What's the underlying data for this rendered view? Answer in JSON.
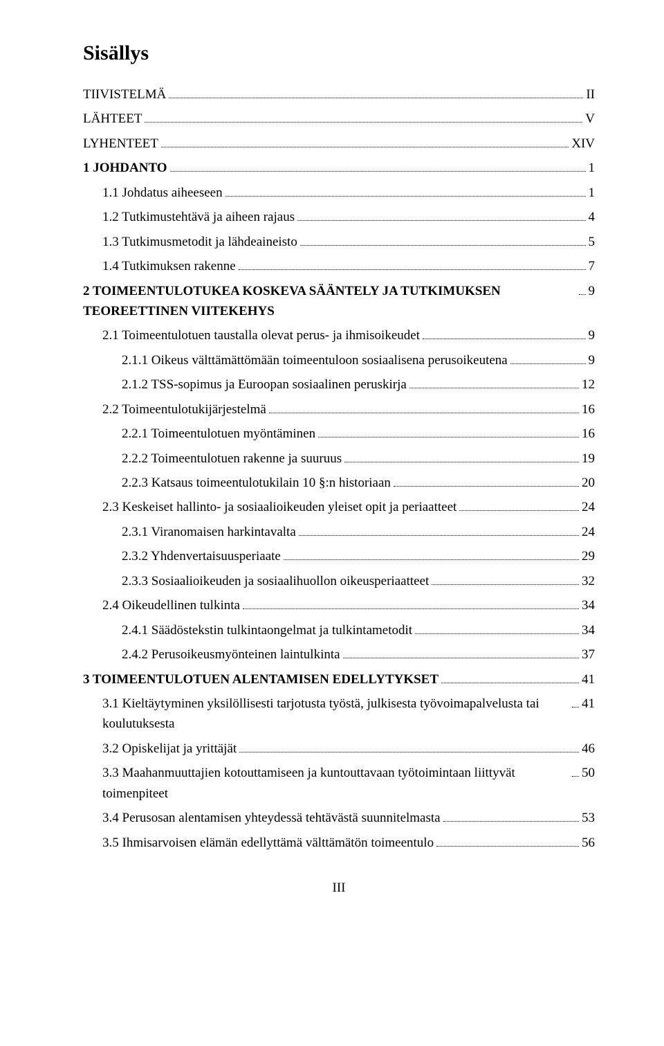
{
  "title": "Sisällys",
  "page_number": "III",
  "colors": {
    "text": "#000000",
    "background": "#ffffff"
  },
  "typography": {
    "font_family": "Times New Roman",
    "title_size_pt": 22,
    "body_size_pt": 14
  },
  "toc": [
    {
      "label": "TIIVISTELMÄ",
      "page": "II",
      "indent": 0,
      "bold": false
    },
    {
      "label": "LÄHTEET",
      "page": "V",
      "indent": 0,
      "bold": false
    },
    {
      "label": "LYHENTEET",
      "page": "XIV",
      "indent": 0,
      "bold": false
    },
    {
      "label": "1 JOHDANTO",
      "page": "1",
      "indent": 0,
      "bold": true
    },
    {
      "label": "1.1 Johdatus aiheeseen",
      "page": "1",
      "indent": 1,
      "bold": false
    },
    {
      "label": "1.2 Tutkimustehtävä ja aiheen rajaus",
      "page": "4",
      "indent": 1,
      "bold": false
    },
    {
      "label": "1.3 Tutkimusmetodit ja lähdeaineisto",
      "page": "5",
      "indent": 1,
      "bold": false
    },
    {
      "label": "1.4 Tutkimuksen rakenne",
      "page": "7",
      "indent": 1,
      "bold": false
    },
    {
      "label": "2 TOIMEENTULOTUKEA KOSKEVA SÄÄNTELY JA TUTKIMUKSEN TEOREETTINEN VIITEKEHYS",
      "page": "9",
      "indent": 0,
      "bold": true
    },
    {
      "label": "2.1 Toimeentulotuen taustalla olevat perus- ja ihmisoikeudet",
      "page": "9",
      "indent": 1,
      "bold": false
    },
    {
      "label": "2.1.1 Oikeus välttämättömään toimeentuloon sosiaalisena perusoikeutena",
      "page": "9",
      "indent": 2,
      "bold": false
    },
    {
      "label": "2.1.2 TSS-sopimus ja Euroopan sosiaalinen peruskirja",
      "page": "12",
      "indent": 2,
      "bold": false
    },
    {
      "label": "2.2 Toimeentulotukijärjestelmä",
      "page": "16",
      "indent": 1,
      "bold": false
    },
    {
      "label": "2.2.1 Toimeentulotuen myöntäminen",
      "page": "16",
      "indent": 2,
      "bold": false
    },
    {
      "label": "2.2.2 Toimeentulotuen rakenne ja suuruus",
      "page": "19",
      "indent": 2,
      "bold": false
    },
    {
      "label": "2.2.3 Katsaus toimeentulotukilain 10 §:n historiaan",
      "page": "20",
      "indent": 2,
      "bold": false
    },
    {
      "label": "2.3 Keskeiset hallinto- ja sosiaalioikeuden yleiset opit ja periaatteet",
      "page": "24",
      "indent": 1,
      "bold": false
    },
    {
      "label": "2.3.1 Viranomaisen harkintavalta",
      "page": "24",
      "indent": 2,
      "bold": false
    },
    {
      "label": "2.3.2 Yhdenvertaisuusperiaate",
      "page": "29",
      "indent": 2,
      "bold": false
    },
    {
      "label": "2.3.3 Sosiaalioikeuden ja sosiaalihuollon oikeusperiaatteet",
      "page": "32",
      "indent": 2,
      "bold": false
    },
    {
      "label": "2.4 Oikeudellinen tulkinta",
      "page": "34",
      "indent": 1,
      "bold": false
    },
    {
      "label": "2.4.1 Säädöstekstin tulkintaongelmat ja tulkintametodit",
      "page": "34",
      "indent": 2,
      "bold": false
    },
    {
      "label": "2.4.2 Perusoikeusmyönteinen laintulkinta",
      "page": "37",
      "indent": 2,
      "bold": false
    },
    {
      "label": "3 TOIMEENTULOTUEN ALENTAMISEN EDELLYTYKSET",
      "page": "41",
      "indent": 0,
      "bold": true
    },
    {
      "label": "3.1 Kieltäytyminen yksilöllisesti tarjotusta työstä, julkisesta työvoimapalvelusta tai koulutuksesta",
      "page": "41",
      "indent": 1,
      "bold": false
    },
    {
      "label": "3.2 Opiskelijat ja yrittäjät",
      "page": "46",
      "indent": 1,
      "bold": false
    },
    {
      "label": "3.3 Maahanmuuttajien kotouttamiseen ja kuntouttavaan työtoimintaan liittyvät toimenpiteet",
      "page": "50",
      "indent": 1,
      "bold": false
    },
    {
      "label": "3.4 Perusosan alentamisen yhteydessä tehtävästä suunnitelmasta",
      "page": "53",
      "indent": 1,
      "bold": false
    },
    {
      "label": "3.5 Ihmisarvoisen elämän edellyttämä välttämätön toimeentulo",
      "page": "56",
      "indent": 1,
      "bold": false
    }
  ]
}
